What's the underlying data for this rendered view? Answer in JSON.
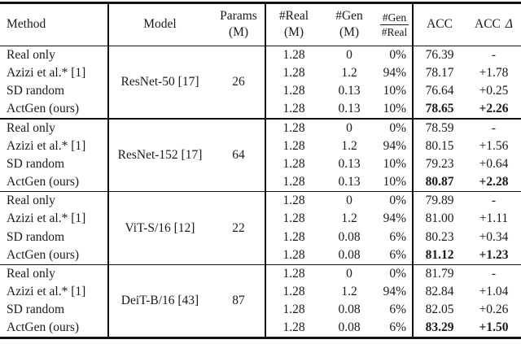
{
  "colors": {
    "text": "#1a1a1a",
    "rule": "#111111",
    "background": "#ffffff"
  },
  "table": {
    "headers": {
      "method": "Method",
      "model": "Model",
      "params_top": "Params",
      "params_bottom": "(M)",
      "real_top": "#Real",
      "real_bottom": "(M)",
      "gen_top": "#Gen",
      "gen_bottom": "(M)",
      "ratio_numerator": "#Gen",
      "ratio_denominator": "#Real",
      "acc": "ACC",
      "acc_delta_acc": "ACC",
      "acc_delta_symbol": "Δ"
    },
    "groups": [
      {
        "model": "ResNet-50 [17]",
        "params": "26",
        "rows": [
          {
            "method": "Real only",
            "real": "1.28",
            "gen": "0",
            "ratio": "0%",
            "acc": "76.39",
            "delta": "-",
            "bold": false
          },
          {
            "method": "Azizi et al.* [1]",
            "real": "1.28",
            "gen": "1.2",
            "ratio": "94%",
            "acc": "78.17",
            "delta": "+1.78",
            "bold": false
          },
          {
            "method": "SD random",
            "real": "1.28",
            "gen": "0.13",
            "ratio": "10%",
            "acc": "76.64",
            "delta": "+0.25",
            "bold": false
          },
          {
            "method": "ActGen (ours)",
            "real": "1.28",
            "gen": "0.13",
            "ratio": "10%",
            "acc": "78.65",
            "delta": "+2.26",
            "bold": true
          }
        ]
      },
      {
        "model": "ResNet-152 [17]",
        "params": "64",
        "rows": [
          {
            "method": "Real only",
            "real": "1.28",
            "gen": "0",
            "ratio": "0%",
            "acc": "78.59",
            "delta": "-",
            "bold": false
          },
          {
            "method": "Azizi et al.* [1]",
            "real": "1.28",
            "gen": "1.2",
            "ratio": "94%",
            "acc": "80.15",
            "delta": "+1.56",
            "bold": false
          },
          {
            "method": "SD random",
            "real": "1.28",
            "gen": "0.13",
            "ratio": "10%",
            "acc": "79.23",
            "delta": "+0.64",
            "bold": false
          },
          {
            "method": "ActGen (ours)",
            "real": "1.28",
            "gen": "0.13",
            "ratio": "10%",
            "acc": "80.87",
            "delta": "+2.28",
            "bold": true
          }
        ]
      },
      {
        "model": "ViT-S/16 [12]",
        "params": "22",
        "rows": [
          {
            "method": "Real only",
            "real": "1.28",
            "gen": "0",
            "ratio": "0%",
            "acc": "79.89",
            "delta": "-",
            "bold": false
          },
          {
            "method": "Azizi et al.* [1]",
            "real": "1.28",
            "gen": "1.2",
            "ratio": "94%",
            "acc": "81.00",
            "delta": "+1.11",
            "bold": false
          },
          {
            "method": "SD random",
            "real": "1.28",
            "gen": "0.08",
            "ratio": "6%",
            "acc": "80.23",
            "delta": "+0.34",
            "bold": false
          },
          {
            "method": "ActGen (ours)",
            "real": "1.28",
            "gen": "0.08",
            "ratio": "6%",
            "acc": "81.12",
            "delta": "+1.23",
            "bold": true
          }
        ]
      },
      {
        "model": "DeiT-B/16 [43]",
        "params": "87",
        "rows": [
          {
            "method": "Real only",
            "real": "1.28",
            "gen": "0",
            "ratio": "0%",
            "acc": "81.79",
            "delta": "-",
            "bold": false
          },
          {
            "method": "Azizi et al.* [1]",
            "real": "1.28",
            "gen": "1.2",
            "ratio": "94%",
            "acc": "82.84",
            "delta": "+1.04",
            "bold": false
          },
          {
            "method": "SD random",
            "real": "1.28",
            "gen": "0.08",
            "ratio": "6%",
            "acc": "82.05",
            "delta": "+0.26",
            "bold": false
          },
          {
            "method": "ActGen (ours)",
            "real": "1.28",
            "gen": "0.08",
            "ratio": "6%",
            "acc": "83.29",
            "delta": "+1.50",
            "bold": true
          }
        ]
      }
    ]
  }
}
